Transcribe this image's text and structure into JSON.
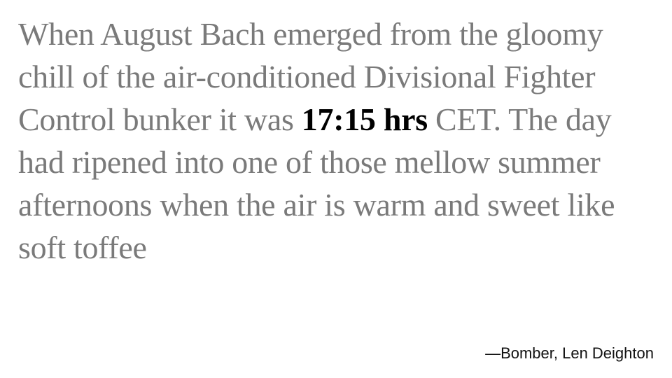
{
  "quote": {
    "before": "When August Bach emerged from the gloomy chill of the air-conditioned Divisional Fighter Control bunker it was ",
    "highlight": "17:15 hrs",
    "after": " CET. The day had ripened into one of those mellow summer afternoons when the air is warm and sweet like soft toffee"
  },
  "attribution": "—Bomber, Len Deighton",
  "colors": {
    "quote_text": "#7a7a7a",
    "highlight_text": "#000000",
    "attribution_text": "#111111",
    "background": "#ffffff"
  }
}
